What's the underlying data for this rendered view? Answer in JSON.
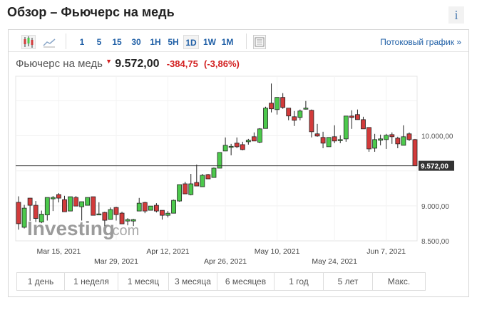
{
  "header": {
    "title": "Обзор – Фьючерс на медь",
    "info_label": "i"
  },
  "toolbar": {
    "chart_types": [
      "candlestick-icon",
      "line-chart-icon"
    ],
    "intervals": [
      "1",
      "5",
      "15",
      "30",
      "1H",
      "5H",
      "1D",
      "1W",
      "1M"
    ],
    "selected_interval": "1D",
    "stream_link": "Потоковый график »"
  },
  "quote": {
    "name": "Фьючерс на медь",
    "last": "9.572,00",
    "change": "-384,75",
    "change_pct": "(-3,86%)",
    "direction": "down"
  },
  "ranges": [
    "1 день",
    "1 неделя",
    "1 месяц",
    "3 месяца",
    "6 месяцев",
    "1 год",
    "5 лет",
    "Макс."
  ],
  "watermark": "Investing.com",
  "colors": {
    "up": "#4cc94c",
    "down": "#d23b3b",
    "link": "#1f5fa6",
    "price_tag": "#333333"
  },
  "chart_data": {
    "type": "candlestick",
    "ylim": [
      8500,
      10850
    ],
    "y_ticks": [
      {
        "value": 8500,
        "label": "8.500,00"
      },
      {
        "value": 9000,
        "label": "9.000,00"
      },
      {
        "value": 10000,
        "label": "10.000,00"
      }
    ],
    "current_price": {
      "value": 9572,
      "label": "9.572,00"
    },
    "x_ticks": [
      {
        "index": 7,
        "label": "Mar 15, 2021",
        "row": 1
      },
      {
        "index": 17,
        "label": "Mar 29, 2021",
        "row": 2
      },
      {
        "index": 26,
        "label": "Apr 12, 2021",
        "row": 1
      },
      {
        "index": 36,
        "label": "Apr 26, 2021",
        "row": 2
      },
      {
        "index": 45,
        "label": "May 10, 2021",
        "row": 1
      },
      {
        "index": 55,
        "label": "May 24, 2021",
        "row": 2
      },
      {
        "index": 64,
        "label": "Jun 7, 2021",
        "row": 1
      }
    ],
    "grid": true,
    "ohlc": [
      [
        9051,
        9136,
        8660,
        8745
      ],
      [
        8694,
        9014,
        8677,
        8967
      ],
      [
        9110,
        9113,
        8786,
        9008
      ],
      [
        9008,
        9069,
        8769,
        8820
      ],
      [
        8769,
        8932,
        8753,
        8881
      ],
      [
        8871,
        9120,
        8790,
        9120
      ],
      [
        9100,
        9140,
        8926,
        9120
      ],
      [
        9161,
        9181,
        9049,
        9110
      ],
      [
        9089,
        9143,
        8916,
        8916
      ],
      [
        8926,
        9130,
        8926,
        9130
      ],
      [
        9120,
        9140,
        8997,
        8997
      ],
      [
        8987,
        9059,
        8790,
        9059
      ],
      [
        9008,
        9120,
        9008,
        9120
      ],
      [
        9130,
        9130,
        8865,
        8865
      ],
      [
        8885,
        9051,
        8880,
        8885
      ],
      [
        8906,
        8916,
        8712,
        8794
      ],
      [
        8806,
        8977,
        8806,
        8947
      ],
      [
        8977,
        8987,
        8790,
        8875
      ],
      [
        8896,
        8916,
        8743,
        8743
      ],
      [
        8783,
        8824,
        8722,
        8804
      ],
      [
        8783,
        8814,
        8712,
        8804
      ],
      [
        8926,
        9113,
        8926,
        9038
      ],
      [
        9048,
        9059,
        8895,
        8926
      ],
      [
        8937,
        8997,
        8937,
        8997
      ],
      [
        9008,
        9038,
        8906,
        8926
      ],
      [
        8936,
        8936,
        8804,
        8865
      ],
      [
        8865,
        8926,
        8834,
        8895
      ],
      [
        8895,
        9089,
        8895,
        9079
      ],
      [
        9069,
        9303,
        9059,
        9303
      ],
      [
        9314,
        9344,
        9171,
        9171
      ],
      [
        9160,
        9456,
        9150,
        9314
      ],
      [
        9334,
        9589,
        9283,
        9283
      ],
      [
        9273,
        9456,
        9273,
        9436
      ],
      [
        9446,
        9456,
        9385,
        9385
      ],
      [
        9405,
        9548,
        9405,
        9538
      ],
      [
        9538,
        9762,
        9538,
        9762
      ],
      [
        9783,
        9976,
        9783,
        9864
      ],
      [
        9850,
        9885,
        9721,
        9850
      ],
      [
        9895,
        9976,
        9823,
        9844
      ],
      [
        9874,
        9915,
        9793,
        9803
      ],
      [
        9915,
        9956,
        9874,
        9936
      ],
      [
        9987,
        10048,
        9926,
        9926
      ],
      [
        9908,
        10109,
        9895,
        10099
      ],
      [
        10105,
        10415,
        10105,
        10395
      ],
      [
        10466,
        10746,
        10334,
        10385
      ],
      [
        10374,
        10548,
        10303,
        10548
      ],
      [
        10548,
        10609,
        10385,
        10405
      ],
      [
        10395,
        10395,
        10222,
        10283
      ],
      [
        10272,
        10354,
        10140,
        10221
      ],
      [
        10262,
        10375,
        10221,
        10354
      ],
      [
        10395,
        10497,
        10375,
        10395
      ],
      [
        10364,
        10375,
        9977,
        10058
      ],
      [
        10028,
        10170,
        9987,
        9997
      ],
      [
        9977,
        10058,
        9823,
        9895
      ],
      [
        9844,
        9977,
        9844,
        9977
      ],
      [
        9987,
        10150,
        9895,
        9926
      ],
      [
        9946,
        10007,
        9895,
        9946
      ],
      [
        9956,
        10282,
        9915,
        10282
      ],
      [
        10282,
        10364,
        10099,
        10262
      ],
      [
        10303,
        10375,
        10231,
        10231
      ],
      [
        10231,
        10272,
        10099,
        10099
      ],
      [
        10119,
        10119,
        9772,
        9813
      ],
      [
        9823,
        10028,
        9772,
        9946
      ],
      [
        9936,
        10017,
        9864,
        9956
      ],
      [
        9946,
        10028,
        9813,
        10007
      ],
      [
        10017,
        10048,
        9885,
        9987
      ],
      [
        9966,
        9987,
        9823,
        9885
      ],
      [
        9864,
        10150,
        9864,
        9987
      ],
      [
        10028,
        10048,
        9926,
        9946
      ],
      [
        9946,
        9956,
        9572,
        9572
      ]
    ]
  }
}
